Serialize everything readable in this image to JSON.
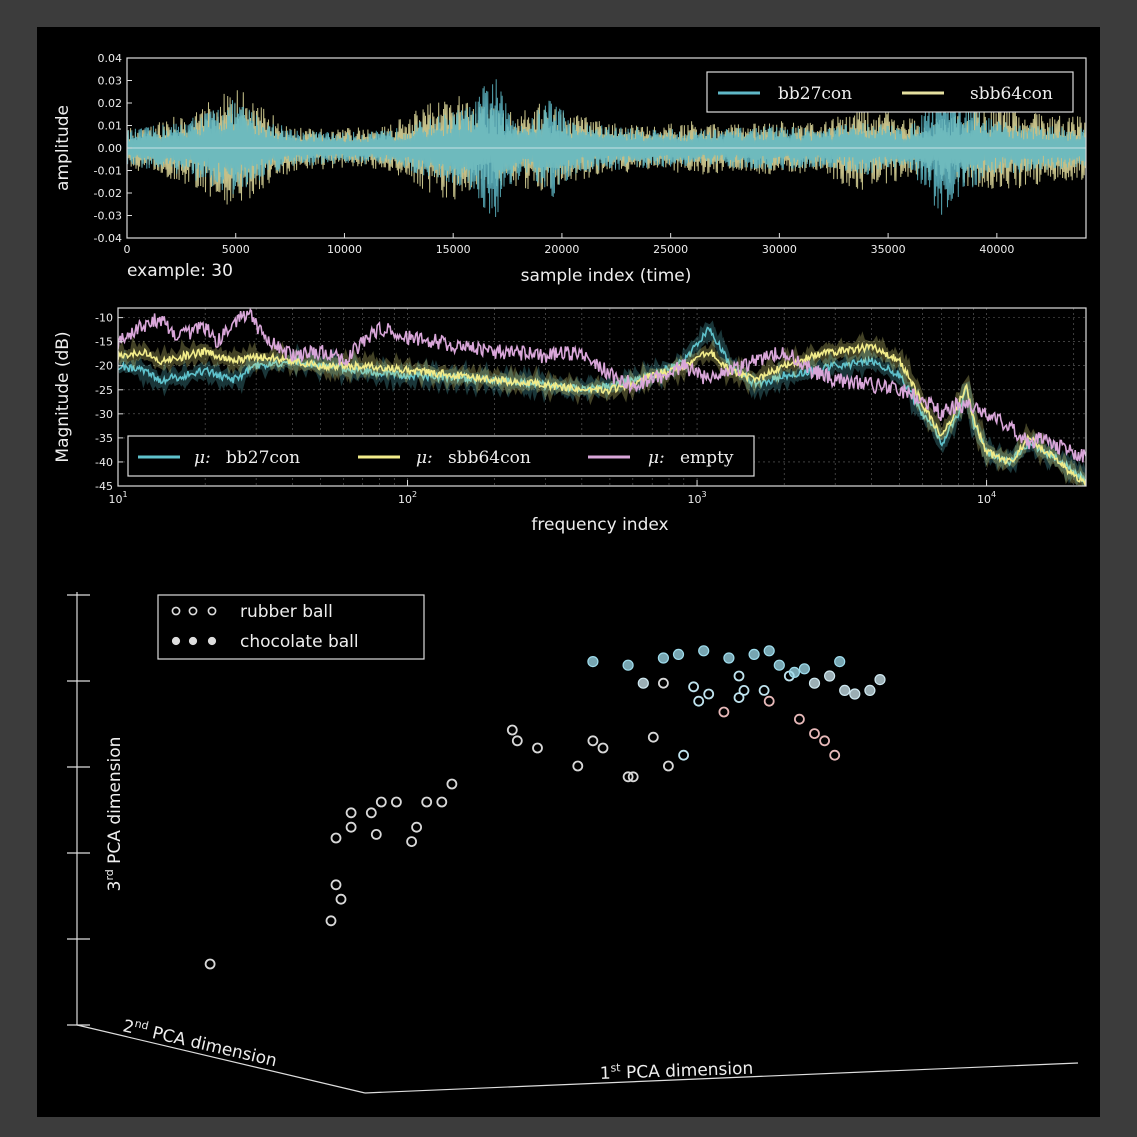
{
  "chart_data": [
    {
      "type": "line",
      "title": "",
      "xlabel": "sample index (time)",
      "ylabel": "amplitude",
      "annotation": "example: 30",
      "xlim": [
        0,
        44100
      ],
      "ylim": [
        -0.04,
        0.04
      ],
      "xticks": [
        0,
        5000,
        10000,
        15000,
        20000,
        25000,
        30000,
        35000,
        40000
      ],
      "yticks": [
        "0.04",
        "0.03",
        "0.02",
        "0.01",
        "0.00",
        "-0.01",
        "-0.02",
        "-0.03",
        "-0.04"
      ],
      "legend_position": "top-right",
      "series": [
        {
          "name": "bb27con",
          "color": "#5fb8c7",
          "envelope": [
            [
              0,
              0.008
            ],
            [
              2500,
              0.012
            ],
            [
              5000,
              0.022
            ],
            [
              6500,
              0.012
            ],
            [
              8000,
              0.008
            ],
            [
              10000,
              0.007
            ],
            [
              12000,
              0.008
            ],
            [
              13500,
              0.012
            ],
            [
              14500,
              0.015
            ],
            [
              16000,
              0.02
            ],
            [
              16800,
              0.036
            ],
            [
              17500,
              0.018
            ],
            [
              18500,
              0.012
            ],
            [
              19500,
              0.025
            ],
            [
              20500,
              0.012
            ],
            [
              22000,
              0.01
            ],
            [
              24000,
              0.009
            ],
            [
              26000,
              0.008
            ],
            [
              28000,
              0.009
            ],
            [
              30000,
              0.01
            ],
            [
              32000,
              0.009
            ],
            [
              34000,
              0.012
            ],
            [
              36000,
              0.009
            ],
            [
              37500,
              0.033
            ],
            [
              38500,
              0.02
            ],
            [
              40000,
              0.012
            ],
            [
              42000,
              0.01
            ],
            [
              44100,
              0.009
            ]
          ]
        },
        {
          "name": "sbb64con",
          "color": "#e6e0a0",
          "envelope": [
            [
              0,
              0.009
            ],
            [
              2500,
              0.015
            ],
            [
              5000,
              0.028
            ],
            [
              6500,
              0.016
            ],
            [
              8000,
              0.01
            ],
            [
              10000,
              0.009
            ],
            [
              12000,
              0.01
            ],
            [
              13500,
              0.018
            ],
            [
              15000,
              0.025
            ],
            [
              16000,
              0.02
            ],
            [
              17500,
              0.016
            ],
            [
              19000,
              0.02
            ],
            [
              20500,
              0.015
            ],
            [
              22000,
              0.012
            ],
            [
              24000,
              0.01
            ],
            [
              26000,
              0.012
            ],
            [
              28000,
              0.011
            ],
            [
              30000,
              0.012
            ],
            [
              32000,
              0.011
            ],
            [
              33500,
              0.02
            ],
            [
              35000,
              0.016
            ],
            [
              36500,
              0.012
            ],
            [
              38000,
              0.016
            ],
            [
              40000,
              0.02
            ],
            [
              42000,
              0.016
            ],
            [
              44100,
              0.014
            ]
          ]
        }
      ]
    },
    {
      "type": "line",
      "title": "",
      "xlabel": "frequency index",
      "ylabel": "Magnitude (dB)",
      "xscale": "log",
      "xlim": [
        10,
        22050
      ],
      "ylim": [
        -45,
        -8
      ],
      "xticks": [
        {
          "value": 10,
          "base": "10",
          "exp": "1"
        },
        {
          "value": 100,
          "base": "10",
          "exp": "2"
        },
        {
          "value": 1000,
          "base": "10",
          "exp": "3"
        },
        {
          "value": 10000,
          "base": "10",
          "exp": "4"
        }
      ],
      "yticks": [
        "-10",
        "-15",
        "-20",
        "-25",
        "-30",
        "-35",
        "-40",
        "-45"
      ],
      "legend_position": "lower-left",
      "series": [
        {
          "name": "μ: bb27con",
          "mu": "μ:",
          "label": "bb27con",
          "color": "#5fc2cc",
          "points": [
            [
              10,
              -20
            ],
            [
              12,
              -21
            ],
            [
              14,
              -23
            ],
            [
              17,
              -22
            ],
            [
              20,
              -21
            ],
            [
              25,
              -23
            ],
            [
              30,
              -20
            ],
            [
              40,
              -19
            ],
            [
              50,
              -20
            ],
            [
              70,
              -21
            ],
            [
              100,
              -22
            ],
            [
              200,
              -23
            ],
            [
              300,
              -24
            ],
            [
              400,
              -25
            ],
            [
              500,
              -24
            ],
            [
              700,
              -22
            ],
            [
              900,
              -19
            ],
            [
              1100,
              -12
            ],
            [
              1300,
              -20
            ],
            [
              1600,
              -24
            ],
            [
              2000,
              -22
            ],
            [
              2500,
              -21
            ],
            [
              3000,
              -20
            ],
            [
              4000,
              -19
            ],
            [
              5000,
              -22
            ],
            [
              6000,
              -30
            ],
            [
              7000,
              -36
            ],
            [
              8000,
              -30
            ],
            [
              8500,
              -24
            ],
            [
              9000,
              -32
            ],
            [
              10000,
              -38
            ],
            [
              12000,
              -40
            ],
            [
              14000,
              -36
            ],
            [
              16000,
              -38
            ],
            [
              18000,
              -40
            ],
            [
              20000,
              -42
            ],
            [
              22050,
              -44
            ]
          ]
        },
        {
          "name": "μ: sbb64con",
          "mu": "μ:",
          "label": "sbb64con",
          "color": "#f2ec8a",
          "points": [
            [
              10,
              -18
            ],
            [
              12,
              -17
            ],
            [
              14,
              -19
            ],
            [
              17,
              -18
            ],
            [
              20,
              -17
            ],
            [
              25,
              -19
            ],
            [
              30,
              -18
            ],
            [
              40,
              -19
            ],
            [
              50,
              -20
            ],
            [
              70,
              -20
            ],
            [
              100,
              -21
            ],
            [
              200,
              -23
            ],
            [
              300,
              -24
            ],
            [
              400,
              -25
            ],
            [
              500,
              -25
            ],
            [
              700,
              -22
            ],
            [
              900,
              -20
            ],
            [
              1100,
              -17
            ],
            [
              1300,
              -21
            ],
            [
              1600,
              -23
            ],
            [
              2000,
              -20
            ],
            [
              2500,
              -18
            ],
            [
              3000,
              -17
            ],
            [
              4000,
              -16
            ],
            [
              5000,
              -19
            ],
            [
              6000,
              -28
            ],
            [
              7000,
              -35
            ],
            [
              8000,
              -28
            ],
            [
              8500,
              -24
            ],
            [
              9000,
              -31
            ],
            [
              10000,
              -38
            ],
            [
              12000,
              -40
            ],
            [
              14000,
              -35
            ],
            [
              16000,
              -38
            ],
            [
              18000,
              -40
            ],
            [
              20000,
              -43
            ],
            [
              22050,
              -44
            ]
          ]
        },
        {
          "name": "μ: empty",
          "mu": "μ:",
          "label": "empty",
          "color": "#d9a6d9",
          "points": [
            [
              10,
              -15
            ],
            [
              12,
              -12
            ],
            [
              14,
              -10
            ],
            [
              16,
              -14
            ],
            [
              18,
              -13
            ],
            [
              20,
              -12
            ],
            [
              22,
              -15
            ],
            [
              25,
              -11
            ],
            [
              28,
              -9
            ],
            [
              32,
              -14
            ],
            [
              40,
              -18
            ],
            [
              50,
              -17
            ],
            [
              60,
              -19
            ],
            [
              70,
              -15
            ],
            [
              80,
              -12
            ],
            [
              100,
              -14
            ],
            [
              150,
              -16
            ],
            [
              200,
              -17
            ],
            [
              300,
              -18
            ],
            [
              400,
              -17
            ],
            [
              500,
              -22
            ],
            [
              600,
              -24
            ],
            [
              700,
              -23
            ],
            [
              900,
              -20
            ],
            [
              1100,
              -23
            ],
            [
              1300,
              -21
            ],
            [
              1600,
              -19
            ],
            [
              2000,
              -17
            ],
            [
              2500,
              -21
            ],
            [
              3000,
              -23
            ],
            [
              4000,
              -24
            ],
            [
              5000,
              -25
            ],
            [
              6000,
              -27
            ],
            [
              7000,
              -30
            ],
            [
              8000,
              -28
            ],
            [
              9000,
              -29
            ],
            [
              10000,
              -30
            ],
            [
              12000,
              -33
            ],
            [
              14000,
              -36
            ],
            [
              16000,
              -35
            ],
            [
              18000,
              -37
            ],
            [
              20000,
              -38
            ],
            [
              22050,
              -39
            ]
          ]
        }
      ]
    },
    {
      "type": "scatter",
      "title": "",
      "xlabel_prefix": "1",
      "xlabel_sup": "st",
      "xlabel_suffix": " PCA dimension",
      "ylabel_prefix": "2",
      "ylabel_sup": "nd",
      "ylabel_suffix": " PCA dimension",
      "zlabel_prefix": "3",
      "zlabel_sup": "rd",
      "zlabel_suffix": " PCA dimension",
      "legend_position": "top-left",
      "series": [
        {
          "name": "rubber ball",
          "marker": "open-circle",
          "color": "#dddddd",
          "points": [
            [
              0.02,
              0.1
            ],
            [
              0.27,
              0.32
            ],
            [
              0.28,
              0.28
            ],
            [
              0.26,
              0.22
            ],
            [
              0.27,
              0.45
            ],
            [
              0.3,
              0.48
            ],
            [
              0.3,
              0.52
            ],
            [
              0.34,
              0.52
            ],
            [
              0.35,
              0.46
            ],
            [
              0.36,
              0.55
            ],
            [
              0.39,
              0.55
            ],
            [
              0.42,
              0.44
            ],
            [
              0.43,
              0.48
            ],
            [
              0.45,
              0.55
            ],
            [
              0.48,
              0.55
            ],
            [
              0.5,
              0.6
            ],
            [
              0.62,
              0.75
            ],
            [
              0.63,
              0.72
            ],
            [
              0.67,
              0.7
            ],
            [
              0.75,
              0.65
            ],
            [
              0.78,
              0.72
            ],
            [
              0.8,
              0.7
            ],
            [
              0.85,
              0.62
            ],
            [
              0.86,
              0.62
            ],
            [
              0.9,
              0.73
            ],
            [
              0.93,
              0.65
            ],
            [
              0.96,
              0.68
            ],
            [
              1.04,
              0.8
            ],
            [
              0.99,
              0.83
            ],
            [
              0.92,
              0.88
            ],
            [
              0.98,
              0.87
            ],
            [
              1.01,
              0.85
            ],
            [
              1.07,
              0.84
            ],
            [
              1.07,
              0.9
            ],
            [
              1.12,
              0.86
            ],
            [
              1.08,
              0.86
            ],
            [
              1.13,
              0.83
            ],
            [
              1.17,
              0.9
            ],
            [
              1.19,
              0.78
            ],
            [
              1.22,
              0.74
            ],
            [
              1.26,
              0.68
            ],
            [
              1.24,
              0.72
            ]
          ]
        },
        {
          "name": "chocolate ball",
          "marker": "filled-circle",
          "color": "#dddddd",
          "points": [
            [
              0.78,
              0.94
            ],
            [
              0.85,
              0.93
            ],
            [
              0.92,
              0.95
            ],
            [
              0.95,
              0.96
            ],
            [
              1.0,
              0.97
            ],
            [
              1.05,
              0.95
            ],
            [
              1.1,
              0.96
            ],
            [
              1.13,
              0.97
            ],
            [
              1.15,
              0.93
            ],
            [
              1.2,
              0.92
            ],
            [
              1.22,
              0.88
            ],
            [
              1.25,
              0.9
            ],
            [
              1.28,
              0.86
            ],
            [
              1.3,
              0.85
            ],
            [
              1.33,
              0.86
            ],
            [
              1.35,
              0.89
            ],
            [
              1.27,
              0.94
            ],
            [
              1.18,
              0.91
            ],
            [
              0.88,
              0.88
            ]
          ]
        }
      ]
    }
  ]
}
